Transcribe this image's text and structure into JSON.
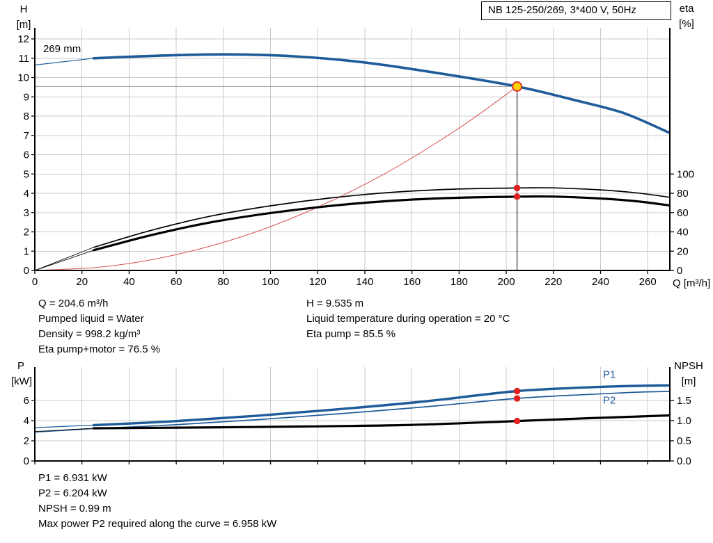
{
  "colors": {
    "curve_blue": "#1d5b99",
    "curve_red": "#d95050",
    "curve_black": "#000000",
    "dot_red": "#e01f1f",
    "duty_fill": "#ffd200",
    "duty_stroke": "#e03535",
    "grid": "#cacaca",
    "axis": "#000000",
    "ref_line": "#9b9b9b",
    "label_blue": "#1d5b99"
  },
  "info_top": {
    "left": [
      "Q = 204.6 m³/h",
      "Pumped liquid = Water",
      "Density = 998.2 kg/m³",
      "Eta pump+motor = 76.5 %"
    ],
    "right": [
      "H = 9.535 m",
      "Liquid temperature during operation = 20 °C",
      "Eta pump = 85.5 %"
    ]
  },
  "info_bottom": [
    "P1 = 6.931 kW",
    "P2 = 6.204 kW",
    "NPSH = 0.99 m",
    "Max power P2 required along the curve = 6.958 kW"
  ],
  "chart_data": [
    {
      "type": "line",
      "title": "NB 125-250/269, 3*400 V, 50Hz",
      "xlabel": "Q [m³/h]",
      "ylabel_left": "H [m]",
      "ylabel_left_lines": [
        "H",
        "[m]"
      ],
      "ylabel_right": "eta [%]",
      "ylabel_right_lines": [
        "eta",
        "[%]"
      ],
      "impeller_label": "269 mm",
      "xlim": [
        0,
        269.4
      ],
      "ylim_left": [
        0,
        12.58
      ],
      "ylim_right_eta": [
        0,
        100
      ],
      "xticks": [
        0,
        20,
        40,
        60,
        80,
        100,
        120,
        140,
        160,
        180,
        200,
        220,
        240,
        260
      ],
      "yticks_left": [
        0,
        1,
        2,
        3,
        4,
        5,
        6,
        7,
        8,
        9,
        10,
        11,
        12
      ],
      "yticks_right": [
        0,
        20,
        40,
        60,
        80,
        100
      ],
      "show_x_tick_labels": true,
      "grid": true,
      "series": [
        {
          "name": "pump-curve-lead",
          "axis": "H",
          "color": "#1d5b99",
          "width": 1.2,
          "points": [
            [
              0,
              10.65
            ],
            [
              25,
              11.0
            ]
          ]
        },
        {
          "name": "pump-curve-269mm",
          "axis": "H",
          "color": "#1d5b99",
          "width": 3.6,
          "points": [
            [
              25,
              11.0
            ],
            [
              50,
              11.12
            ],
            [
              80,
              11.2
            ],
            [
              110,
              11.1
            ],
            [
              140,
              10.78
            ],
            [
              170,
              10.25
            ],
            [
              204.6,
              9.535
            ],
            [
              230,
              8.8
            ],
            [
              250,
              8.15
            ],
            [
              269,
              7.15
            ]
          ]
        },
        {
          "name": "system-curve",
          "axis": "H",
          "color": "#d95050",
          "width": 1,
          "points": [
            [
              0,
              0
            ],
            [
              30,
              0.2
            ],
            [
              60,
              0.82
            ],
            [
              90,
              1.84
            ],
            [
              120,
              3.28
            ],
            [
              150,
              5.12
            ],
            [
              180,
              7.38
            ],
            [
              204.6,
              9.535
            ]
          ]
        },
        {
          "name": "eta-pump-lead",
          "axis": "eta",
          "color": "#000000",
          "width": 0.9,
          "points": [
            [
              0,
              0
            ],
            [
              25,
              24
            ]
          ]
        },
        {
          "name": "eta-pump-curve",
          "axis": "eta",
          "color": "#000000",
          "width": 1.7,
          "points": [
            [
              25,
              24
            ],
            [
              50,
              42
            ],
            [
              75,
              56.5
            ],
            [
              100,
              67
            ],
            [
              125,
              75
            ],
            [
              150,
              80.7
            ],
            [
              175,
              84
            ],
            [
              204.6,
              85.5
            ],
            [
              220,
              85.6
            ],
            [
              240,
              83.5
            ],
            [
              255,
              80.5
            ],
            [
              269,
              76
            ]
          ]
        },
        {
          "name": "eta-pump-motor-lead",
          "axis": "eta",
          "color": "#000000",
          "width": 0.9,
          "points": [
            [
              0,
              0
            ],
            [
              25,
              21
            ]
          ]
        },
        {
          "name": "eta-pump-motor-curve",
          "axis": "eta",
          "color": "#000000",
          "width": 3.2,
          "points": [
            [
              25,
              21
            ],
            [
              50,
              37
            ],
            [
              75,
              50
            ],
            [
              100,
              59.5
            ],
            [
              125,
              66.8
            ],
            [
              150,
              72
            ],
            [
              175,
              75
            ],
            [
              204.6,
              76.5
            ],
            [
              220,
              76.6
            ],
            [
              240,
              74.6
            ],
            [
              255,
              71.8
            ],
            [
              269,
              67.5
            ]
          ]
        }
      ],
      "duty_point": {
        "Q": 204.6,
        "H": 9.535
      },
      "dots": [
        {
          "Q": 204.6,
          "axis": "eta",
          "v": 85.5
        },
        {
          "Q": 204.6,
          "axis": "eta",
          "v": 76.5
        }
      ]
    },
    {
      "type": "line",
      "xlabel": "",
      "ylabel_left": "P [kW]",
      "ylabel_left_lines": [
        "P",
        "[kW]"
      ],
      "ylabel_right": "NPSH [m]",
      "ylabel_right_lines": [
        "NPSH",
        "[m]"
      ],
      "xlim": [
        0,
        269.4
      ],
      "ylim_left": [
        0,
        9.3
      ],
      "ylim_right_npsh": [
        0,
        2.3
      ],
      "xticks": [
        0,
        20,
        40,
        60,
        80,
        100,
        120,
        140,
        160,
        180,
        200,
        220,
        240,
        260
      ],
      "yticks_left": [
        0,
        2,
        4,
        6
      ],
      "yticks_right": [
        {
          "v": 0,
          "label": "0.0"
        },
        {
          "v": 0.5,
          "label": "0.5"
        },
        {
          "v": 1,
          "label": "1.0"
        },
        {
          "v": 1.5,
          "label": "1.5"
        }
      ],
      "show_x_tick_labels": false,
      "grid": true,
      "series": [
        {
          "name": "p1-lead",
          "axis": "P",
          "color": "#1d5b99",
          "width": 1.2,
          "points": [
            [
              0,
              3.3
            ],
            [
              25,
              3.55
            ]
          ]
        },
        {
          "name": "p1-curve",
          "axis": "P",
          "color": "#1d5b99",
          "width": 3.4,
          "points": [
            [
              25,
              3.55
            ],
            [
              60,
              3.95
            ],
            [
              95,
              4.5
            ],
            [
              130,
              5.15
            ],
            [
              165,
              5.9
            ],
            [
              204.6,
              6.931
            ],
            [
              235,
              7.3
            ],
            [
              255,
              7.45
            ],
            [
              269,
              7.5
            ]
          ]
        },
        {
          "name": "p2-lead",
          "axis": "P",
          "color": "#1d5b99",
          "width": 1.2,
          "points": [
            [
              0,
              2.85
            ],
            [
              25,
              3.2
            ]
          ]
        },
        {
          "name": "p2-curve",
          "axis": "P",
          "color": "#1d5b99",
          "width": 1.7,
          "points": [
            [
              25,
              3.2
            ],
            [
              60,
              3.6
            ],
            [
              95,
              4.1
            ],
            [
              130,
              4.7
            ],
            [
              165,
              5.35
            ],
            [
              204.6,
              6.204
            ],
            [
              235,
              6.6
            ],
            [
              255,
              6.82
            ],
            [
              269,
              6.9
            ]
          ]
        },
        {
          "name": "npsh-lead",
          "axis": "NPSH",
          "color": "#000000",
          "width": 0.9,
          "points": [
            [
              0,
              0.73
            ],
            [
              25,
              0.81
            ]
          ]
        },
        {
          "name": "npsh-curve",
          "axis": "NPSH",
          "color": "#000000",
          "width": 3.2,
          "points": [
            [
              25,
              0.81
            ],
            [
              70,
              0.83
            ],
            [
              115,
              0.855
            ],
            [
              160,
              0.895
            ],
            [
              204.6,
              0.99
            ],
            [
              235,
              1.06
            ],
            [
              255,
              1.1
            ],
            [
              269,
              1.13
            ]
          ]
        }
      ],
      "dots": [
        {
          "Q": 204.6,
          "axis": "P",
          "v": 6.931
        },
        {
          "Q": 204.6,
          "axis": "P",
          "v": 6.204
        },
        {
          "Q": 204.6,
          "axis": "NPSH",
          "v": 0.99
        }
      ],
      "curve_labels": [
        {
          "text": "P1",
          "Q": 241,
          "axis": "P",
          "v": 8.25
        },
        {
          "text": "P2",
          "Q": 241,
          "axis": "P",
          "v": 5.7
        }
      ]
    }
  ]
}
